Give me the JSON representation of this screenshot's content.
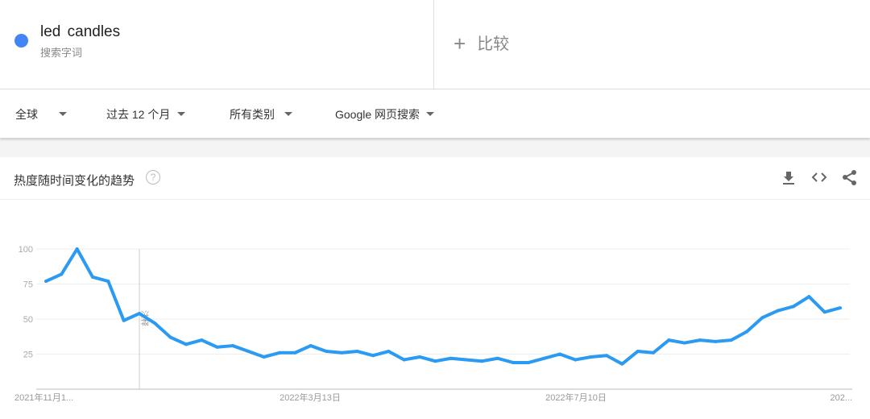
{
  "term": {
    "name": "led  candles",
    "subtitle": "搜索字词",
    "color": "#4285f4"
  },
  "compare": {
    "plus": "+",
    "label": "比较"
  },
  "filters": {
    "region": "全球",
    "time": "过去 12 个月",
    "category": "所有类别",
    "source": "Google 网页搜索"
  },
  "card": {
    "title": "热度随时间变化的趋势",
    "help": "?",
    "icons": [
      "download-icon",
      "embed-icon",
      "share-icon"
    ]
  },
  "chart_data": {
    "type": "line",
    "title": "",
    "ylim": [
      0,
      100
    ],
    "yticks": [
      "25",
      "50",
      "75",
      "100"
    ],
    "xtick_labels": [
      "2021年11月1...",
      "2022年3月13日",
      "2022年7月10日",
      "202..."
    ],
    "annotation": "注释",
    "grid": true,
    "line_color": "#2b9af3",
    "series": [
      {
        "values": [
          77,
          82,
          100,
          80,
          77,
          49,
          54,
          47,
          37,
          32,
          35,
          30,
          31,
          27,
          23,
          26,
          26,
          31,
          27,
          26,
          27,
          24,
          27,
          21,
          23,
          20,
          22,
          21,
          20,
          22,
          19,
          19,
          22,
          25,
          21,
          23,
          24,
          18,
          27,
          26,
          35,
          33,
          35,
          34,
          35,
          41,
          51,
          56,
          59,
          66,
          55,
          58
        ]
      }
    ]
  }
}
